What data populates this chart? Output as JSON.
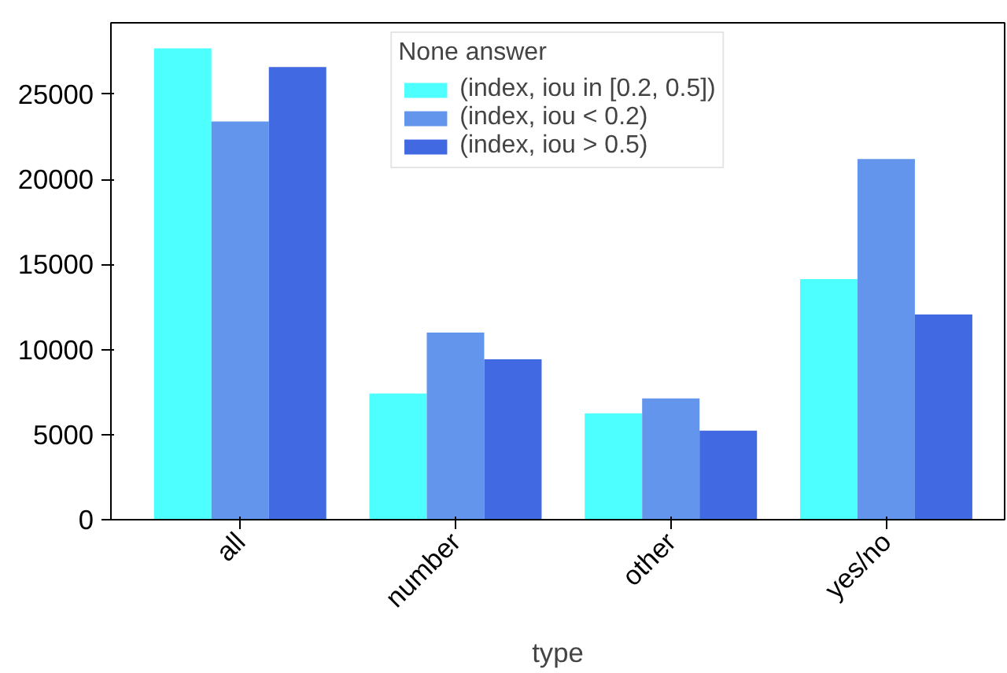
{
  "chart_data": {
    "type": "bar",
    "xlabel": "type",
    "legend_title": "None answer",
    "categories": [
      "all",
      "number",
      "other",
      "yes/no"
    ],
    "series": [
      {
        "name": "(index, iou in [0.2, 0.5])",
        "color": "#4dffff",
        "values": [
          27700,
          7420,
          6250,
          14140
        ]
      },
      {
        "name": "(index, iou < 0.2)",
        "color": "#6495ed",
        "values": [
          23400,
          11000,
          7130,
          21200
        ]
      },
      {
        "name": "(index, iou > 0.5)",
        "color": "#4169e1",
        "values": [
          26600,
          9430,
          5230,
          12060
        ]
      }
    ],
    "ylim": [
      0,
      29200
    ],
    "yticks": [
      0,
      5000,
      10000,
      15000,
      20000,
      25000
    ],
    "legend": "top",
    "grid": false
  }
}
